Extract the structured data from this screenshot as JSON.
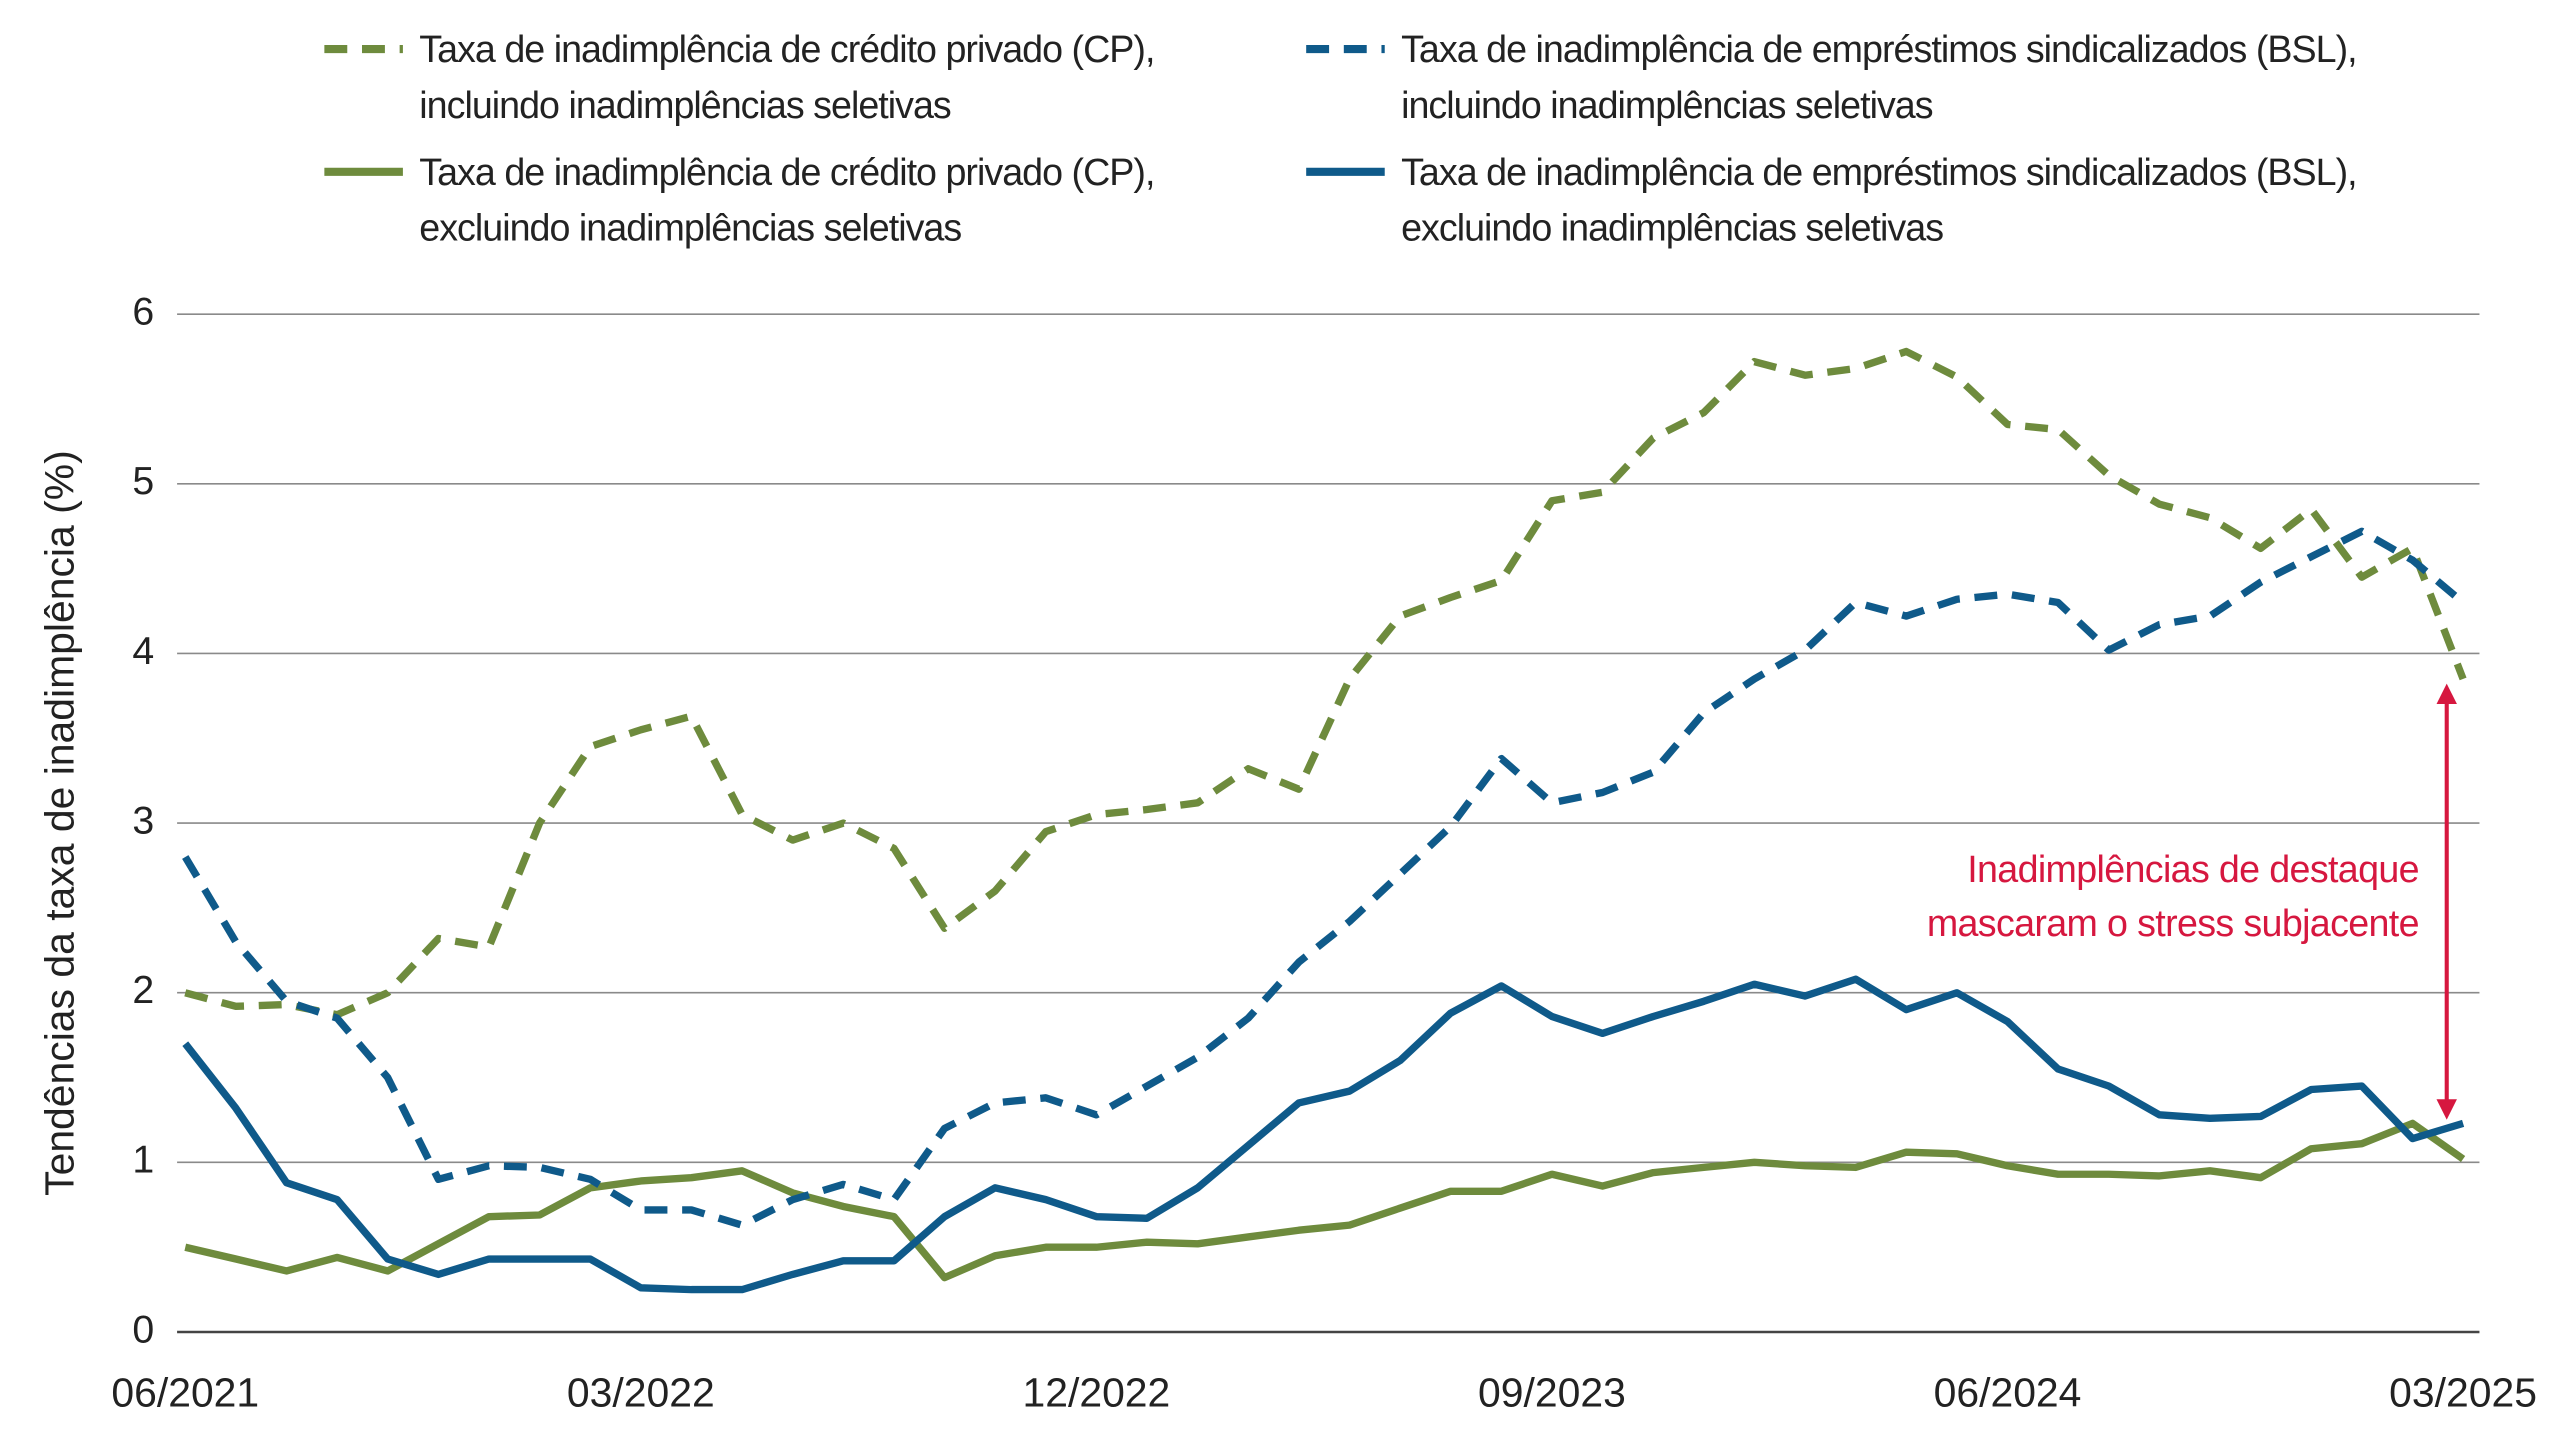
{
  "chart_data": {
    "type": "line",
    "categories": [
      "06/2021",
      null,
      null,
      null,
      null,
      null,
      null,
      null,
      null,
      "03/2022",
      null,
      null,
      null,
      null,
      null,
      null,
      null,
      null,
      "12/2022",
      null,
      null,
      null,
      null,
      null,
      null,
      null,
      null,
      "09/2023",
      null,
      null,
      null,
      null,
      null,
      null,
      null,
      null,
      "06/2024",
      null,
      null,
      null,
      null,
      null,
      null,
      null,
      null,
      "03/2025"
    ],
    "y_label": "Tendências da taxa de inadimplência (%)",
    "ylim": [
      0,
      6
    ],
    "yticks": [
      0,
      1,
      2,
      3,
      4,
      5,
      6
    ],
    "grid": true,
    "legend": "top",
    "annotation": "Inadimplências de destaque\nmascaram o stress subjacente",
    "annotation_color": "#d6173f",
    "series": [
      {
        "name": "Taxa de inadimplência de crédito privado (CP),\nincluindo inadimplências seletivas",
        "color": "#6e8b3d",
        "linestyle": "dashed",
        "values": [
          2.0,
          1.92,
          1.93,
          1.87,
          2.0,
          2.32,
          2.27,
          3.0,
          3.45,
          3.55,
          3.63,
          3.05,
          2.9,
          3.0,
          2.85,
          2.38,
          2.6,
          2.95,
          3.05,
          3.08,
          3.12,
          3.32,
          3.2,
          3.85,
          4.22,
          4.33,
          4.43,
          4.9,
          4.95,
          5.27,
          5.42,
          5.72,
          5.64,
          5.68,
          5.78,
          5.63,
          5.35,
          5.32,
          5.05,
          4.88,
          4.8,
          4.62,
          4.85,
          4.45,
          4.62,
          3.85
        ]
      },
      {
        "name": "Taxa de inadimplência de crédito privado (CP),\nexcluindo inadimplências seletivas",
        "color": "#6e8b3d",
        "linestyle": "solid",
        "values": [
          0.5,
          0.43,
          0.36,
          0.44,
          0.36,
          0.52,
          0.68,
          0.69,
          0.85,
          0.89,
          0.91,
          0.95,
          0.82,
          0.74,
          0.68,
          0.32,
          0.45,
          0.5,
          0.5,
          0.53,
          0.52,
          0.56,
          0.6,
          0.63,
          0.73,
          0.83,
          0.83,
          0.93,
          0.86,
          0.94,
          0.97,
          1.0,
          0.98,
          0.97,
          1.06,
          1.05,
          0.98,
          0.93,
          0.93,
          0.92,
          0.95,
          0.91,
          1.08,
          1.11,
          1.23,
          1.02
        ]
      },
      {
        "name": "Taxa de inadimplência de empréstimos sindicalizados (BSL),\nincluindo inadimplências seletivas",
        "color": "#0f5a8a",
        "linestyle": "dashed",
        "values": [
          2.8,
          2.3,
          1.95,
          1.85,
          1.5,
          0.9,
          0.98,
          0.97,
          0.9,
          0.72,
          0.72,
          0.63,
          0.78,
          0.87,
          0.78,
          1.2,
          1.35,
          1.38,
          1.28,
          1.45,
          1.62,
          1.85,
          2.18,
          2.42,
          2.7,
          2.98,
          3.38,
          3.12,
          3.18,
          3.3,
          3.65,
          3.85,
          4.02,
          4.3,
          4.22,
          4.32,
          4.35,
          4.3,
          4.02,
          4.17,
          4.22,
          4.42,
          4.57,
          4.72,
          4.55,
          4.3
        ]
      },
      {
        "name": "Taxa de inadimplência de empréstimos sindicalizados (BSL),\nexcluindo inadimplências seletivas",
        "color": "#0f5a8a",
        "linestyle": "solid",
        "values": [
          1.7,
          1.32,
          0.88,
          0.78,
          0.43,
          0.34,
          0.43,
          0.43,
          0.43,
          0.26,
          0.25,
          0.25,
          0.34,
          0.42,
          0.42,
          0.68,
          0.85,
          0.78,
          0.68,
          0.67,
          0.85,
          1.1,
          1.35,
          1.42,
          1.6,
          1.88,
          2.04,
          1.86,
          1.76,
          1.86,
          1.95,
          2.05,
          1.98,
          2.08,
          1.9,
          2.0,
          1.83,
          1.55,
          1.45,
          1.28,
          1.26,
          1.27,
          1.43,
          1.45,
          1.14,
          1.23
        ]
      }
    ]
  }
}
